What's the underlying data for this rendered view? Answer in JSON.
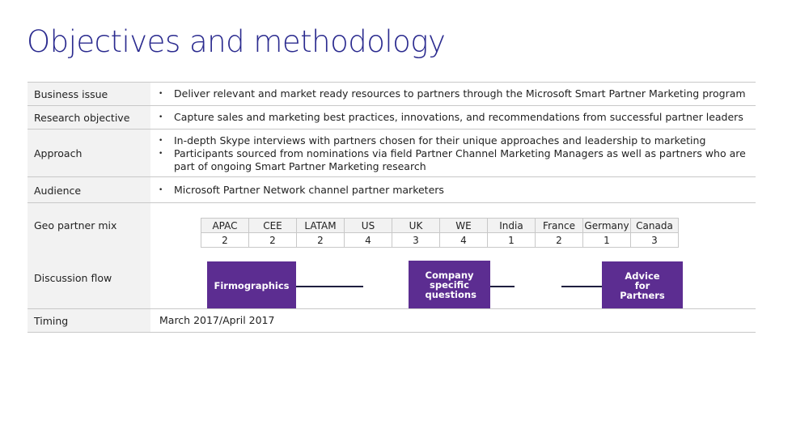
{
  "title": "Objectives and methodology",
  "rows": {
    "business_issue": {
      "label": "Business issue",
      "bullets": [
        "Deliver relevant and market ready resources to partners through the Microsoft Smart Partner Marketing program"
      ]
    },
    "research_objective": {
      "label": "Research objective",
      "bullets": [
        "Capture sales and marketing best practices, innovations, and recommendations from successful partner leaders"
      ]
    },
    "approach": {
      "label": "Approach",
      "bullets": [
        "In-depth Skype interviews with partners chosen for their unique approaches and leadership to marketing",
        "Participants sourced from nominations via field Partner Channel Marketing Managers as well as partners who are part of ongoing Smart Partner Marketing research"
      ]
    },
    "audience": {
      "label": "Audience",
      "bullets": [
        "Microsoft Partner Network channel partner marketers"
      ]
    },
    "geo": {
      "label": "Geo partner mix",
      "regions": [
        "APAC",
        "CEE",
        "LATAM",
        "US",
        "UK",
        "WE",
        "India",
        "France",
        "Germany",
        "Canada"
      ],
      "counts": [
        "2",
        "2",
        "2",
        "4",
        "3",
        "4",
        "1",
        "2",
        "1",
        "3"
      ]
    },
    "discussion": {
      "label": "Discussion flow",
      "steps": [
        "Firmographics",
        "Company specific questions",
        "Advice for Partners"
      ]
    },
    "timing": {
      "label": "Timing",
      "value": "March 2017/April 2017"
    }
  },
  "bullet_char": "•",
  "colors": {
    "title": "#2b2b8f",
    "flow_box": "#5c2d91",
    "label_bg": "#f2f2f2"
  }
}
